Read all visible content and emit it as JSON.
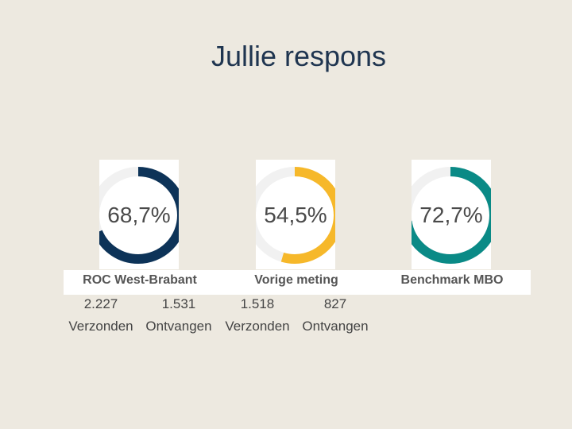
{
  "title": "Jullie respons",
  "donuts": [
    {
      "percent_text": "68,7%",
      "fraction": 0.687,
      "color": "#0d3358",
      "label": "ROC West-Brabant"
    },
    {
      "percent_text": "54,5%",
      "fraction": 0.545,
      "color": "#f6b82a",
      "label": "Vorige meting"
    },
    {
      "percent_text": "72,7%",
      "fraction": 0.727,
      "color": "#0a8a86",
      "label": "Benchmark MBO"
    }
  ],
  "track_color": "#f1f1f1",
  "stats": [
    {
      "value": "2.227",
      "label": "Verzonden"
    },
    {
      "value": "1.531",
      "label": "Ontvangen"
    },
    {
      "value": "1.518",
      "label": "Verzonden"
    },
    {
      "value": "827",
      "label": "Ontvangen"
    }
  ]
}
